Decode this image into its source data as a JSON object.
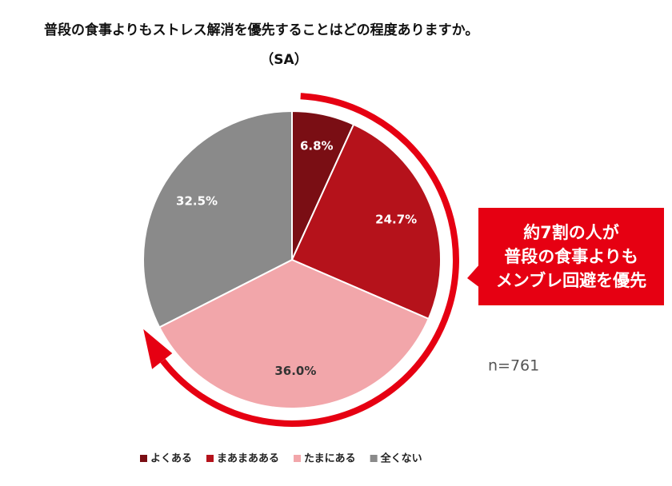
{
  "chart_data": {
    "type": "pie",
    "title": "普段の食事よりもストレス解消を優先することはどの程度ありますか。",
    "subtitle": "（SA）",
    "categories": [
      "よくある",
      "まあまあある",
      "たまにある",
      "全くない"
    ],
    "values": [
      6.8,
      24.7,
      36.0,
      32.5
    ],
    "value_labels": [
      "6.8%",
      "24.7%",
      "36.0%",
      "32.5%"
    ],
    "colors": [
      "#7a0e14",
      "#b5121b",
      "#f2a6aa",
      "#8a8a8a"
    ],
    "label_colors": [
      "#ffffff",
      "#ffffff",
      "#333333",
      "#ffffff"
    ],
    "annotation": [
      "約7割の人が",
      "普段の食事よりも",
      "メンブレ回避を優先"
    ],
    "note": "n=761",
    "legend": "bottom"
  }
}
